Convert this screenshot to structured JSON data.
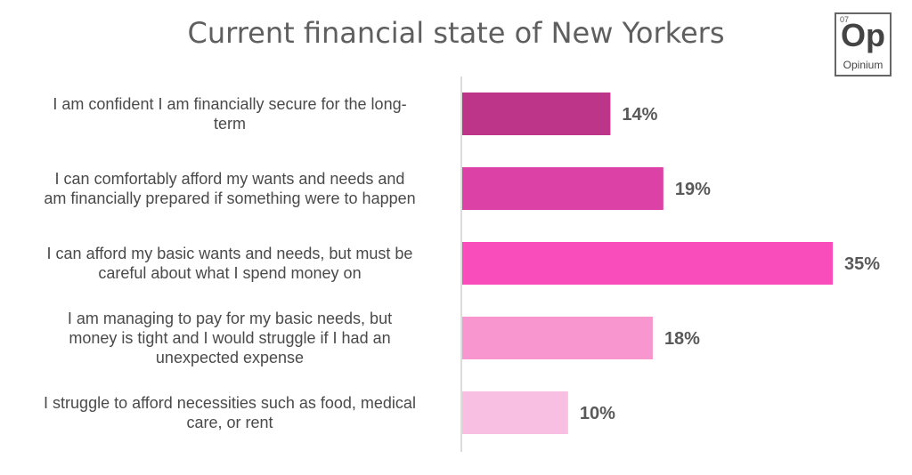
{
  "brand": {
    "number": "07",
    "symbol": "Op",
    "name": "Opinium"
  },
  "chart_data": {
    "type": "bar",
    "orientation": "horizontal",
    "title": "Current financial state of New Yorkers",
    "categories": [
      "I am confident I am financially secure for the long-term",
      "I can comfortably afford my wants and needs and am financially prepared if something were to happen",
      "I can afford my basic wants and needs, but must be careful about what I spend money on",
      "I am managing to pay for my basic needs, but money is tight and I would struggle if I had an unexpected expense",
      "I struggle to afford necessities such as food, medical care, or rent"
    ],
    "category_lines": [
      [
        "I am confident I am financially secure for the long-",
        "term"
      ],
      [
        "I can comfortably afford my wants and needs and",
        "am financially prepared if something were to happen"
      ],
      [
        "I can afford my basic wants and needs, but must be",
        "careful about what I spend money on"
      ],
      [
        "I am managing to pay for my basic needs, but",
        "money is tight and I would struggle if I had an",
        "unexpected expense"
      ],
      [
        "I struggle to afford necessities such as food, medical",
        "care, or rent"
      ]
    ],
    "values": [
      14,
      19,
      35,
      18,
      10
    ],
    "value_labels": [
      "14%",
      "19%",
      "35%",
      "18%",
      "10%"
    ],
    "colors": [
      "#bd3589",
      "#dc41a5",
      "#f84dba",
      "#f796cf",
      "#f9bfe2"
    ],
    "axis_color": "#d0d0d0",
    "grid": false,
    "legend": "none"
  }
}
